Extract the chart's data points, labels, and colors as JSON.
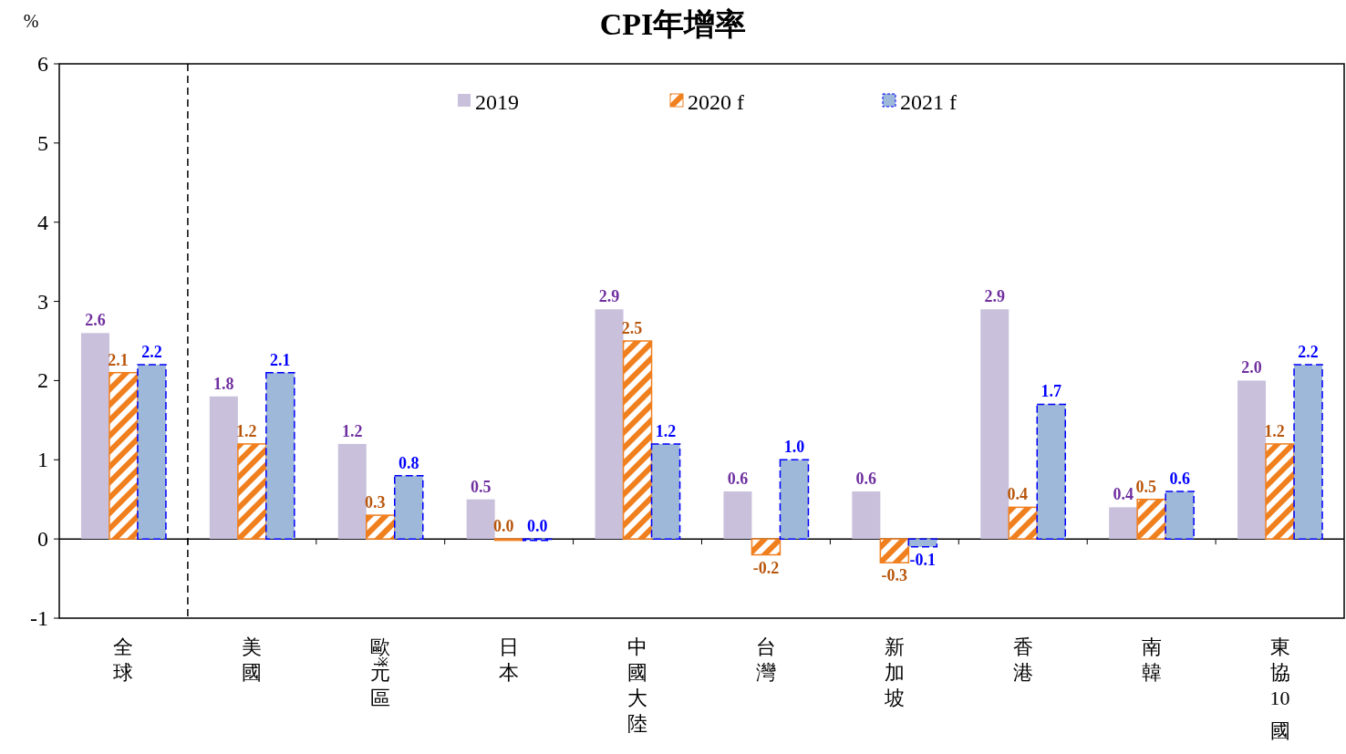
{
  "chart_data": {
    "type": "bar",
    "title": "CPI年增率",
    "ylabel": "%",
    "categories": [
      "全球",
      "美國",
      "歐※元區",
      "日本",
      "中國大陸",
      "台灣",
      "新加坡",
      "香港",
      "南韓",
      "東協10國"
    ],
    "series": [
      {
        "name": "2019",
        "color": "#c9c0dc",
        "values": [
          2.6,
          1.8,
          1.2,
          0.5,
          2.9,
          0.6,
          0.6,
          2.9,
          0.4,
          2.0
        ],
        "value_labels": [
          "2.6",
          "1.8",
          "1.2",
          "0.5",
          "2.9",
          "0.6",
          "0.6",
          "2.9",
          "0.4",
          "2.0"
        ]
      },
      {
        "name": "2020 f",
        "color": "#f07f1e",
        "values": [
          2.1,
          1.2,
          0.3,
          0.0,
          2.5,
          -0.2,
          -0.3,
          0.4,
          0.5,
          1.2
        ],
        "value_labels": [
          "2.1",
          "1.2",
          "0.3",
          "0.0",
          "2.5",
          "-0.2",
          "-0.3",
          "0.4",
          "0.5",
          "1.2"
        ]
      },
      {
        "name": "2021 f",
        "color": "#9db8d9",
        "values": [
          2.2,
          2.1,
          0.8,
          0.0,
          1.2,
          1.0,
          -0.1,
          1.7,
          0.6,
          2.2
        ],
        "value_labels": [
          "2.2",
          "2.1",
          "0.8",
          "0.0",
          "1.2",
          "1.0",
          "-0.1",
          "1.7",
          "0.6",
          "2.2"
        ]
      }
    ],
    "ylim": [
      -1,
      6
    ],
    "yticks": [
      -1,
      0,
      1,
      2,
      3,
      4,
      5,
      6
    ],
    "legend": "top"
  }
}
